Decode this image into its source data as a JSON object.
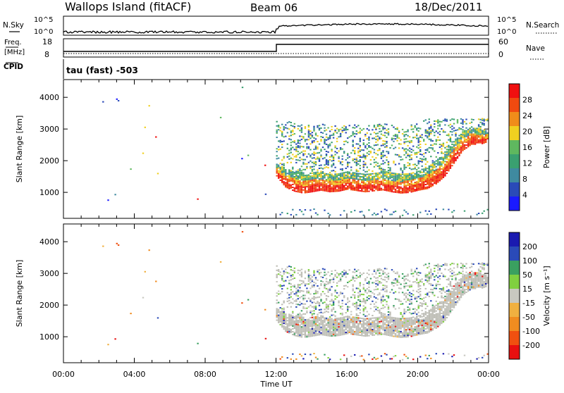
{
  "header": {
    "station": "Wallops Island (fitACF)",
    "beam": "Beam 06",
    "date": "18/Dec/2011"
  },
  "top_panels": {
    "nsky_label": "N.Sky",
    "nsearch_label": "N.Search",
    "nsky_ticks": [
      "10^5",
      "10^0"
    ],
    "nsearch_ticks": [
      "10^5",
      "10^0"
    ],
    "freq_label": "Freq.",
    "freq_unit": "[MHz]",
    "freq_ticks": [
      "18",
      "8"
    ],
    "nave_label": "Nave",
    "nave_ticks": [
      "60",
      "0"
    ],
    "cpid_label": "CPID",
    "cpid_value": "tau (fast) -503"
  },
  "colors": {
    "power_scale": [
      "#1a1aff",
      "#2a4ab8",
      "#3f8aa0",
      "#3aa070",
      "#5fb85f",
      "#f0d020",
      "#f08c1a",
      "#f04a10",
      "#f01010"
    ],
    "velocity_scale": [
      "#e81010",
      "#f05010",
      "#f08c20",
      "#f0b040",
      "#c8c8c0",
      "#80d040",
      "#3aa060",
      "#2a4ab8",
      "#1a1ab0"
    ],
    "ground_scatter": "#bdbdb5"
  },
  "chart_data": [
    {
      "type": "heatmap",
      "name": "power",
      "ylabel": "Slant Range [km]",
      "xlabel": "Time UT",
      "xlim": [
        0,
        24
      ],
      "ylim": [
        180,
        4560
      ],
      "yticks": [
        "1000",
        "2000",
        "3000",
        "4000"
      ],
      "xticks": [
        "00:00",
        "04:00",
        "08:00",
        "12:00",
        "16:00",
        "20:00",
        "00:00"
      ],
      "colorbar_label": "Power [dB]",
      "colorbar_ticks": [
        "4",
        "8",
        "12",
        "16",
        "20",
        "24",
        "28"
      ],
      "band_hours": [
        12.0,
        12.5,
        13.0,
        13.5,
        14.0,
        14.5,
        15.0,
        15.5,
        16.0,
        16.5,
        17.0,
        17.5,
        18.0,
        18.5,
        19.0,
        19.5,
        20.0,
        20.5,
        21.0,
        21.5,
        22.0,
        22.5,
        23.0,
        23.5,
        24.0
      ],
      "band_low_km": [
        1500,
        1150,
        1020,
        960,
        1000,
        1050,
        1000,
        1020,
        1080,
        1040,
        1000,
        1030,
        1060,
        1000,
        960,
        980,
        1050,
        1100,
        1250,
        1500,
        1900,
        2300,
        2500,
        2500,
        2600
      ],
      "band_high_km": [
        1900,
        1750,
        1650,
        1600,
        1600,
        1650,
        1550,
        1600,
        1650,
        1600,
        1580,
        1600,
        1650,
        1600,
        1550,
        1600,
        1650,
        1800,
        2000,
        2200,
        2600,
        2900,
        3050,
        3000,
        2900
      ]
    },
    {
      "type": "heatmap",
      "name": "velocity",
      "ylabel": "Slant Range [km]",
      "xlabel": "Time UT",
      "xlim": [
        0,
        24
      ],
      "ylim": [
        180,
        4560
      ],
      "yticks": [
        "1000",
        "2000",
        "3000",
        "4000"
      ],
      "xticks": [
        "00:00",
        "04:00",
        "08:00",
        "12:00",
        "16:00",
        "20:00",
        "00:00"
      ],
      "colorbar_label": "Velocity [m s⁻¹]",
      "colorbar_ticks": [
        "200",
        "100",
        "50",
        "15",
        "-15",
        "-50",
        "-100",
        "-200"
      ]
    }
  ]
}
